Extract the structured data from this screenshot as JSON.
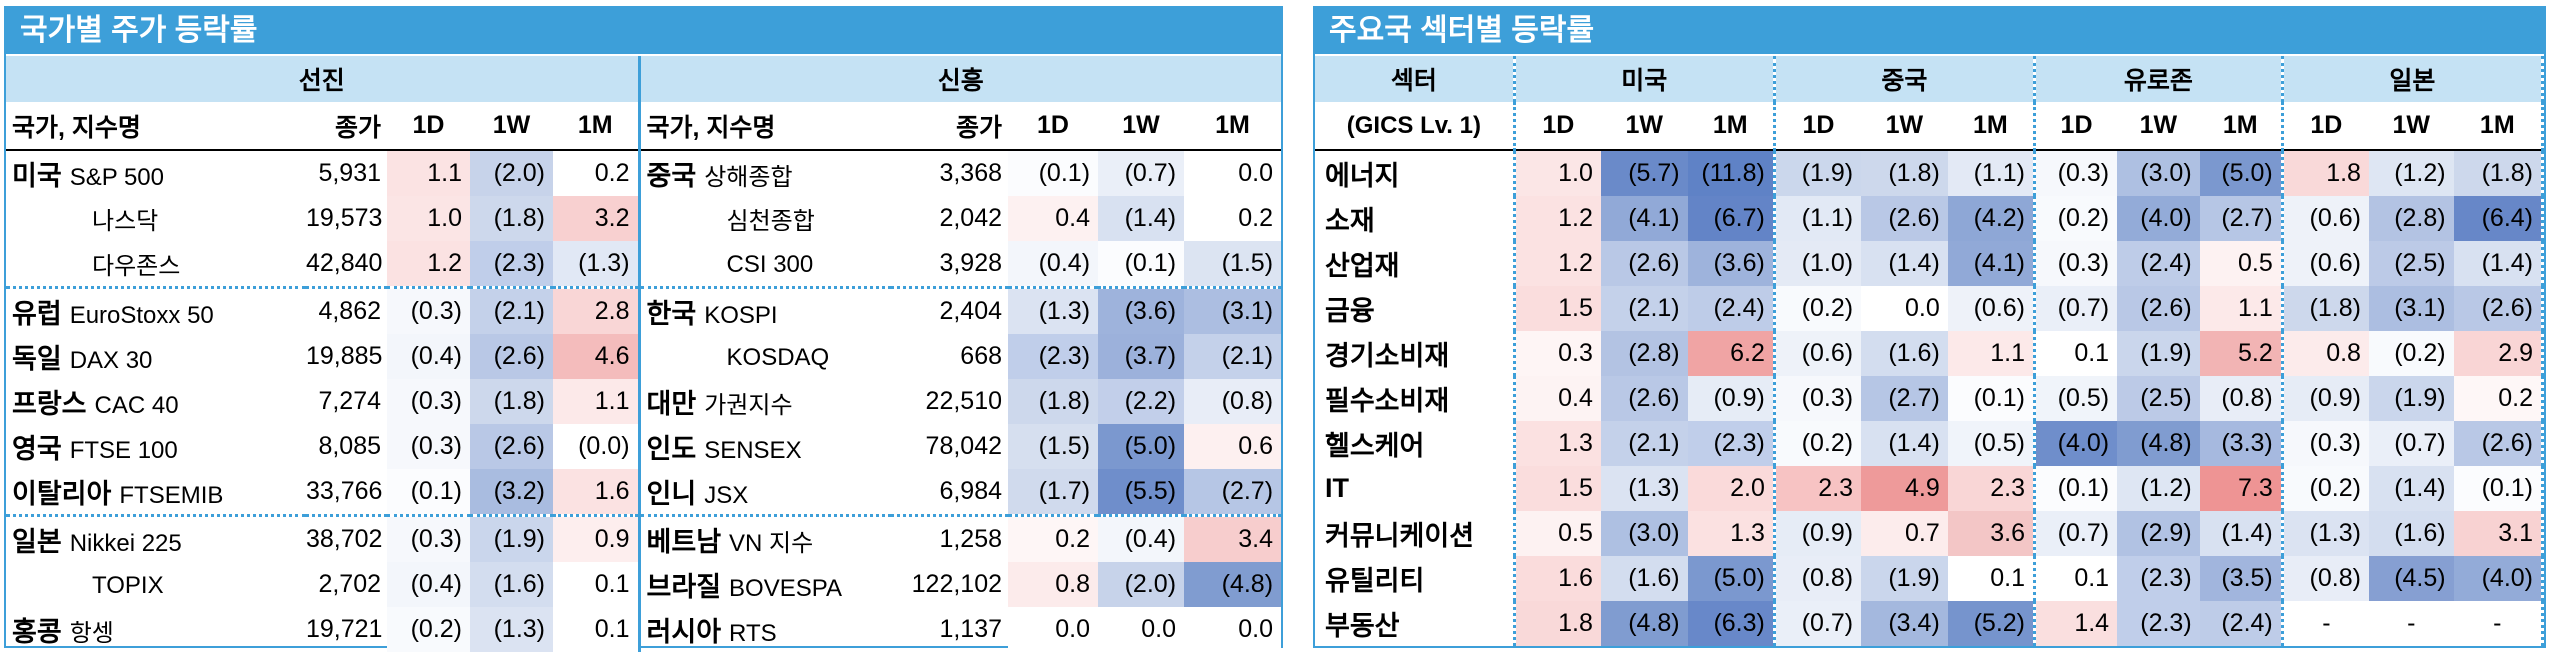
{
  "left": {
    "title": "국가별 주가 등락률",
    "developed_header": "선진",
    "emerging_header": "신흥",
    "col_name": "국가, 지수명",
    "col_close": "종가",
    "col_1d": "1D",
    "col_1w": "1W",
    "col_1m": "1M",
    "developed": [
      {
        "country": "미국",
        "index": "S&P 500",
        "close": "5,931",
        "d1": "1.1",
        "w1": "(2.0)",
        "m1": "0.2",
        "c": [
          "#fbe3e3",
          "#c7d3ea",
          "#ffffff"
        ]
      },
      {
        "country": "",
        "index": "나스닥",
        "close": "19,573",
        "d1": "1.0",
        "w1": "(1.8)",
        "m1": "3.2",
        "c": [
          "#fbe5e5",
          "#cdd8ec",
          "#f8d0d0"
        ]
      },
      {
        "country": "",
        "index": "다우존스",
        "close": "42,840",
        "d1": "1.2",
        "w1": "(2.3)",
        "m1": "(1.3)",
        "c": [
          "#fbe2e2",
          "#c0ceea",
          "#e1e8f5"
        ]
      },
      {
        "country": "유럽",
        "index": "EuroStoxx 50",
        "close": "4,862",
        "d1": "(0.3)",
        "w1": "(2.1)",
        "m1": "2.8",
        "c": [
          "#f6f8fc",
          "#c4d1ea",
          "#f9d6d6"
        ]
      },
      {
        "country": "독일",
        "index": "DAX 30",
        "close": "19,885",
        "d1": "(0.4)",
        "w1": "(2.6)",
        "m1": "4.6",
        "c": [
          "#f3f6fb",
          "#b9c8e6",
          "#f4bcbc"
        ]
      },
      {
        "country": "프랑스",
        "index": "CAC 40",
        "close": "7,274",
        "d1": "(0.3)",
        "w1": "(1.8)",
        "m1": "1.1",
        "c": [
          "#f6f8fc",
          "#cdd8ec",
          "#fce9e9"
        ]
      },
      {
        "country": "영국",
        "index": "FTSE 100",
        "close": "8,085",
        "d1": "(0.3)",
        "w1": "(2.6)",
        "m1": "(0.0)",
        "c": [
          "#f6f8fc",
          "#b9c8e6",
          "#ffffff"
        ]
      },
      {
        "country": "이탈리아",
        "index": "FTSEMIB",
        "close": "33,766",
        "d1": "(0.1)",
        "w1": "(3.2)",
        "m1": "1.6",
        "c": [
          "#fbfcfe",
          "#a9bce0",
          "#fbe2e2"
        ]
      },
      {
        "country": "일본",
        "index": "Nikkei 225",
        "close": "38,702",
        "d1": "(0.3)",
        "w1": "(1.9)",
        "m1": "0.9",
        "c": [
          "#f6f8fc",
          "#cad6ec",
          "#fdeeee"
        ]
      },
      {
        "country": "",
        "index": "TOPIX",
        "close": "2,702",
        "d1": "(0.4)",
        "w1": "(1.6)",
        "m1": "0.1",
        "c": [
          "#f3f6fb",
          "#d3ddef",
          "#ffffff"
        ]
      },
      {
        "country": "홍콩",
        "index": "항셍",
        "close": "19,721",
        "d1": "(0.2)",
        "w1": "(1.3)",
        "m1": "0.1",
        "c": [
          "#f8fafd",
          "#dbe3f2",
          "#ffffff"
        ]
      }
    ],
    "emerging": [
      {
        "country": "중국",
        "index": "상해종합",
        "close": "3,368",
        "d1": "(0.1)",
        "w1": "(0.7)",
        "m1": "0.0",
        "c": [
          "#fbfcfe",
          "#eaeff8",
          "#ffffff"
        ]
      },
      {
        "country": "",
        "index": "심천종합",
        "close": "2,042",
        "d1": "0.4",
        "w1": "(1.4)",
        "m1": "0.2",
        "c": [
          "#fdf1f1",
          "#d8e1f1",
          "#ffffff"
        ]
      },
      {
        "country": "",
        "index": "CSI 300",
        "close": "3,928",
        "d1": "(0.4)",
        "w1": "(0.1)",
        "m1": "(1.5)",
        "c": [
          "#f3f6fb",
          "#fbfcfe",
          "#dce4f2"
        ]
      },
      {
        "country": "한국",
        "index": "KOSPI",
        "close": "2,404",
        "d1": "(1.3)",
        "w1": "(3.6)",
        "m1": "(3.1)",
        "c": [
          "#dbe3f2",
          "#9eb3dc",
          "#acbee1"
        ]
      },
      {
        "country": "",
        "index": "KOSDAQ",
        "close": "668",
        "d1": "(2.3)",
        "w1": "(3.7)",
        "m1": "(2.1)",
        "c": [
          "#c0ceea",
          "#9cb1db",
          "#c4d1ea"
        ]
      },
      {
        "country": "대만",
        "index": "가권지수",
        "close": "22,510",
        "d1": "(1.8)",
        "w1": "(2.2)",
        "m1": "(0.8)",
        "c": [
          "#cdd8ec",
          "#c2cfea",
          "#e8edf7"
        ]
      },
      {
        "country": "인도",
        "index": "SENSEX",
        "close": "78,042",
        "d1": "(1.5)",
        "w1": "(5.0)",
        "m1": "0.6",
        "c": [
          "#d6dfef",
          "#7b98cf",
          "#fdf0f0"
        ]
      },
      {
        "country": "인니",
        "index": "JSX",
        "close": "6,984",
        "d1": "(1.7)",
        "w1": "(5.5)",
        "m1": "(2.7)",
        "c": [
          "#d0daed",
          "#6f8ecb",
          "#b6c6e5"
        ]
      },
      {
        "country": "베트남",
        "index": "VN 지수",
        "close": "1,258",
        "d1": "0.2",
        "w1": "(0.4)",
        "m1": "3.4",
        "c": [
          "#fef6f6",
          "#f3f6fb",
          "#f7cdcd"
        ]
      },
      {
        "country": "브라질",
        "index": "BOVESPA",
        "close": "122,102",
        "d1": "0.8",
        "w1": "(2.0)",
        "m1": "(4.8)",
        "c": [
          "#fcebeb",
          "#c7d3ea",
          "#809cd0"
        ]
      },
      {
        "country": "러시아",
        "index": "RTS",
        "close": "1,137",
        "d1": "0.0",
        "w1": "0.0",
        "m1": "0.0",
        "c": [
          "#ffffff",
          "#ffffff",
          "#ffffff"
        ]
      }
    ]
  },
  "right": {
    "title": "주요국 섹터별 등락률",
    "col_sector": "섹터",
    "gics": "(GICS Lv. 1)",
    "regions": [
      "미국",
      "중국",
      "유로존",
      "일본"
    ],
    "cols": [
      "1D",
      "1W",
      "1M"
    ],
    "rows": [
      {
        "sector": "에너지",
        "v": [
          "1.0",
          "(5.7)",
          "(11.8)",
          "(1.9)",
          "(1.8)",
          "(1.1)",
          "(0.3)",
          "(3.0)",
          "(5.0)",
          "1.8",
          "(1.2)",
          "(1.8)"
        ],
        "c": [
          "#fbe6e6",
          "#6a8ac9",
          "#5f82c6",
          "#cbd7ec",
          "#cdd8ec",
          "#e3e9f5",
          "#f6f8fc",
          "#aec0e2",
          "#7b98cf",
          "#f9d9d9",
          "#dee6f3",
          "#cdd8ec"
        ]
      },
      {
        "sector": "소재",
        "v": [
          "1.2",
          "(4.1)",
          "(6.7)",
          "(1.1)",
          "(2.6)",
          "(4.2)",
          "(0.2)",
          "(4.0)",
          "(2.7)",
          "(0.6)",
          "(2.8)",
          "(6.4)"
        ],
        "c": [
          "#fbe2e2",
          "#91a9d7",
          "#6384c7",
          "#e2e9f5",
          "#b9c8e6",
          "#8ea7d6",
          "#f8fafd",
          "#93abd8",
          "#b6c6e5",
          "#eef2f9",
          "#b3c3e3",
          "#6787c8"
        ]
      },
      {
        "sector": "산업재",
        "v": [
          "1.2",
          "(2.6)",
          "(3.6)",
          "(1.0)",
          "(1.4)",
          "(4.1)",
          "(0.3)",
          "(2.4)",
          "0.5",
          "(0.6)",
          "(2.5)",
          "(1.4)"
        ],
        "c": [
          "#fbe2e2",
          "#b9c8e6",
          "#9eb3dc",
          "#e4eaf5",
          "#d8e1f1",
          "#91a9d7",
          "#f6f8fc",
          "#becce8",
          "#fdf2f2",
          "#eef2f9",
          "#bccae7",
          "#d8e1f1"
        ]
      },
      {
        "sector": "금융",
        "v": [
          "1.5",
          "(2.1)",
          "(2.4)",
          "(0.2)",
          "0.0",
          "(0.6)",
          "(0.7)",
          "(2.6)",
          "1.1",
          "(1.8)",
          "(3.1)",
          "(2.6)"
        ],
        "c": [
          "#fadddd",
          "#c4d1ea",
          "#becce8",
          "#f8fafd",
          "#ffffff",
          "#eef2f9",
          "#eaeff8",
          "#b9c8e6",
          "#fce9e9",
          "#cdd8ec",
          "#acbee1",
          "#b9c8e6"
        ]
      },
      {
        "sector": "경기소비재",
        "v": [
          "0.3",
          "(2.8)",
          "6.2",
          "(0.6)",
          "(1.6)",
          "1.1",
          "0.1",
          "(1.9)",
          "5.2",
          "0.8",
          "(0.2)",
          "2.9"
        ],
        "c": [
          "#fef5f5",
          "#b3c3e3",
          "#f0a4a4",
          "#eef2f9",
          "#d3ddef",
          "#fce9e9",
          "#ffffff",
          "#cad6ec",
          "#f2b4b4",
          "#fcebeb",
          "#f8fafd",
          "#f9d5d5"
        ]
      },
      {
        "sector": "필수소비재",
        "v": [
          "0.4",
          "(2.6)",
          "(0.9)",
          "(0.3)",
          "(2.7)",
          "(0.1)",
          "(0.5)",
          "(2.5)",
          "(0.8)",
          "(0.9)",
          "(1.9)",
          "0.2"
        ],
        "c": [
          "#fdf3f3",
          "#b9c8e6",
          "#e6ecf6",
          "#f6f8fc",
          "#b6c6e5",
          "#fbfcfe",
          "#f0f4fa",
          "#bccae7",
          "#e8edf7",
          "#e6ecf6",
          "#cad6ec",
          "#fef7f7"
        ]
      },
      {
        "sector": "헬스케어",
        "v": [
          "1.3",
          "(2.1)",
          "(2.3)",
          "(0.2)",
          "(1.4)",
          "(0.5)",
          "(4.0)",
          "(4.8)",
          "(3.3)",
          "(0.3)",
          "(0.7)",
          "(2.6)"
        ],
        "c": [
          "#fbe1e1",
          "#c4d1ea",
          "#c0ceea",
          "#f8fafd",
          "#d8e1f1",
          "#f0f4fa",
          "#6f8ecb",
          "#809cd0",
          "#a6b9df",
          "#f6f8fc",
          "#eaeff8",
          "#b9c8e6"
        ]
      },
      {
        "sector": "IT",
        "v": [
          "1.5",
          "(1.3)",
          "2.0",
          "2.3",
          "4.9",
          "2.3",
          "(0.1)",
          "(1.2)",
          "7.3",
          "(0.2)",
          "(1.4)",
          "(0.1)"
        ],
        "c": [
          "#fadddd",
          "#dbe3f2",
          "#fadada",
          "#f7c3c3",
          "#ee9a9a",
          "#f9d6d6",
          "#fbfcfe",
          "#dee6f3",
          "#ee9494",
          "#f8fafd",
          "#d8e1f1",
          "#fbfcfe"
        ]
      },
      {
        "sector": "커뮤니케이션",
        "v": [
          "0.5",
          "(3.0)",
          "1.3",
          "(0.9)",
          "0.7",
          "3.6",
          "(0.7)",
          "(2.9)",
          "(1.4)",
          "(1.3)",
          "(1.6)",
          "3.1"
        ],
        "c": [
          "#fdf2f2",
          "#aec0e2",
          "#fbe1e1",
          "#e6ecf6",
          "#fcecec",
          "#f3c6c6",
          "#eaeff8",
          "#b1c2e3",
          "#d8e1f1",
          "#dbe3f2",
          "#d3ddef",
          "#f8d2d2"
        ]
      },
      {
        "sector": "유틸리티",
        "v": [
          "1.6",
          "(1.6)",
          "(5.0)",
          "(0.8)",
          "(1.9)",
          "0.1",
          "0.1",
          "(2.3)",
          "(3.5)",
          "(0.8)",
          "(4.5)",
          "(4.0)"
        ],
        "c": [
          "#fadcdc",
          "#d3ddef",
          "#7b98cf",
          "#e8edf7",
          "#cad6ec",
          "#ffffff",
          "#ffffff",
          "#c0ceea",
          "#a1b5dd",
          "#e8edf7",
          "#869fd2",
          "#93abd8"
        ]
      },
      {
        "sector": "부동산",
        "v": [
          "1.8",
          "(4.8)",
          "(6.3)",
          "(0.7)",
          "(3.4)",
          "(5.2)",
          "1.4",
          "(2.3)",
          "(2.4)",
          "-",
          "-",
          "-"
        ],
        "c": [
          "#f9d9d9",
          "#809cd0",
          "#6888c9",
          "#eaeff8",
          "#a4b8de",
          "#7694cd",
          "#fadfdf",
          "#c0ceea",
          "#becce8",
          "#ffffff",
          "#ffffff",
          "#ffffff"
        ]
      }
    ]
  }
}
